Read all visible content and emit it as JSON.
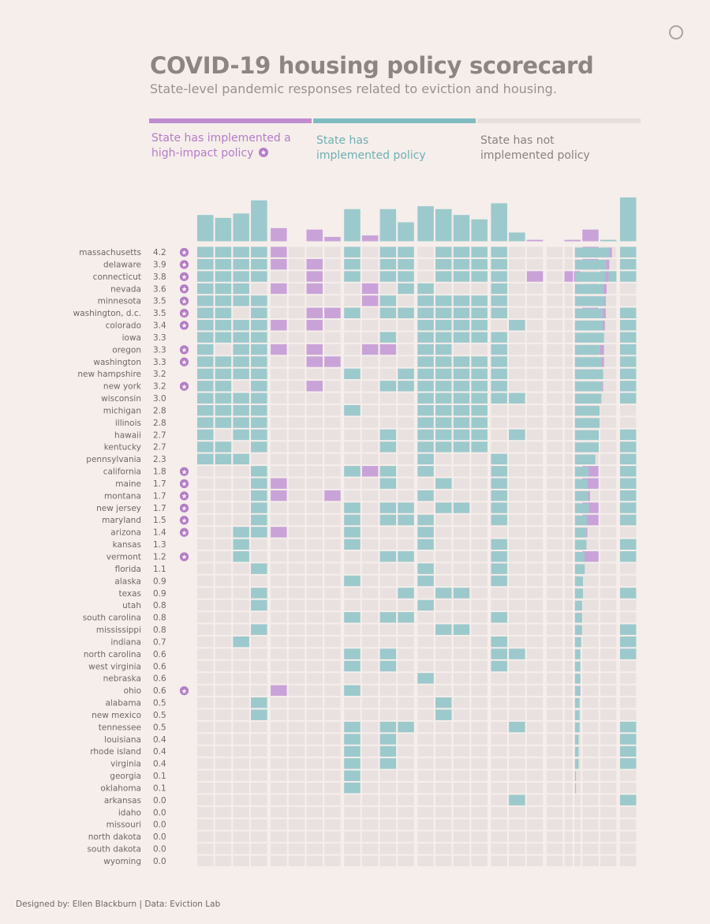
{
  "title": "COVID-19 housing policy scorecard",
  "subtitle": "State-level pandemic responses related to eviction and housing.",
  "legend": {
    "high_impact": "State has implemented a high-impact policy",
    "implemented": "State has implemented policy",
    "not_implemented": "State has not implemented policy"
  },
  "footer": "Designed by: Ellen Blackburn | Data: Eviction Lab",
  "colors": {
    "high_impact": "#c9a3d8",
    "implemented": "#9cc9cc",
    "not_implemented": "#e9e1df",
    "star": "#b57cc6"
  },
  "chart_data": {
    "type": "heatmap",
    "title": "COVID-19 housing policy scorecard",
    "legend": [
      "State has implemented a high-impact policy",
      "State has implemented policy",
      "State has not implemented policy"
    ],
    "states": [
      "massachusetts",
      "delaware",
      "connecticut",
      "nevada",
      "minnesota",
      "washington, d.c.",
      "colorado",
      "iowa",
      "oregon",
      "washington",
      "new hampshire",
      "new york",
      "wisconsin",
      "michigan",
      "illinois",
      "hawaii",
      "kentucky",
      "pennsylvania",
      "california",
      "maine",
      "montana",
      "new jersey",
      "maryland",
      "arizona",
      "kansas",
      "vermont",
      "florida",
      "alaska",
      "texas",
      "utah",
      "south carolina",
      "mississippi",
      "indiana",
      "north carolina",
      "west virginia",
      "nebraska",
      "ohio",
      "alabama",
      "new mexico",
      "tennessee",
      "louisiana",
      "rhode island",
      "virginia",
      "georgia",
      "oklahoma",
      "arkansas",
      "idaho",
      "missouri",
      "north dakota",
      "south dakota",
      "wyoming"
    ],
    "scores": [
      "4.2",
      "3.9",
      "3.8",
      "3.6",
      "3.5",
      "3.5",
      "3.4",
      "3.3",
      "3.3",
      "3.3",
      "3.2",
      "3.2",
      "3.0",
      "2.8",
      "2.8",
      "2.7",
      "2.7",
      "2.3",
      "1.8",
      "1.7",
      "1.7",
      "1.7",
      "1.5",
      "1.4",
      "1.3",
      "1.2",
      "1.1",
      "0.9",
      "0.9",
      "0.8",
      "0.8",
      "0.8",
      "0.7",
      "0.6",
      "0.6",
      "0.6",
      "0.6",
      "0.5",
      "0.5",
      "0.5",
      "0.4",
      "0.4",
      "0.4",
      "0.1",
      "0.1",
      "0.0",
      "0.0",
      "0.0",
      "0.0",
      "0.0",
      "0.0"
    ],
    "high_impact_flag": [
      1,
      1,
      1,
      1,
      1,
      1,
      1,
      0,
      1,
      1,
      0,
      1,
      0,
      0,
      0,
      0,
      0,
      0,
      1,
      1,
      1,
      1,
      1,
      1,
      0,
      1,
      0,
      0,
      0,
      0,
      0,
      0,
      0,
      0,
      0,
      0,
      1,
      0,
      0,
      0,
      0,
      0,
      0,
      0,
      0,
      0,
      0,
      0,
      0,
      0,
      0
    ],
    "column_groups": [
      4,
      4,
      4,
      4,
      3,
      4,
      1
    ],
    "cell_codes": "0 = not implemented, 1 = implemented, 2 = high-impact",
    "matrix": [
      "1111 2000 1011 0111 100 0020 1",
      "1111 2020 1011 0111 100 0020 1",
      "1111 0020 1011 0111 102 0201 1",
      "1110 2020 0201 1000 100 0000 0",
      "1111 0000 0210 1111 100 0000 0",
      "1101 0022 1011 1111 100 0020 1",
      "1111 2020 0000 1111 010 0000 1",
      "1111 0000 0010 1111 100 0000 1",
      "1011 2020 0220 1100 100 0000 1",
      "1111 0022 0000 1111 100 0000 1",
      "1111 0000 1001 1111 100 0000 1",
      "1101 0020 0011 1111 100 0000 1",
      "1111 0000 0000 1111 110 0000 1",
      "1111 0000 1000 1111 000 0000 0",
      "1111 0000 0000 1111 000 0000 0",
      "1011 0000 0010 1111 010 0000 1",
      "1101 0000 0010 1111 000 0000 1",
      "1110 0000 0000 1000 100 0000 1",
      "0001 0000 1210 1000 100 0020 1",
      "0001 2000 0010 0100 100 0020 1",
      "0001 2002 0000 1000 100 0000 1",
      "0001 0000 1011 0110 100 0020 1",
      "0001 0000 1011 1000 100 0020 1",
      "0011 2000 1000 1000 000 0000 0",
      "0010 0000 1000 1000 100 0000 1",
      "0010 0000 0011 0000 100 0020 1",
      "0001 0000 0000 1000 100 0000 0",
      "0000 0000 1000 1000 100 0000 0",
      "0001 0000 0001 0110 000 0000 1",
      "0001 0000 0000 1000 000 0000 0",
      "0000 0000 1011 0000 100 0000 0",
      "0001 0000 0000 0110 000 0000 1",
      "0010 0000 0000 0000 100 0000 1",
      "0000 0000 1010 0000 110 0000 1",
      "0000 0000 1010 0000 100 0000 0",
      "0000 0000 0000 1000 000 0000 0",
      "0000 2000 1000 0000 000 0000 0",
      "0001 0000 0000 0100 000 0000 0",
      "0001 0000 0000 0100 000 0000 0",
      "0000 0000 1011 0000 010 0000 1",
      "0000 0000 1010 0000 000 0000 1",
      "0000 0000 1010 0000 000 0000 1",
      "0000 0000 1010 0000 000 0000 1",
      "0000 0000 1000 0000 000 0000 0",
      "0000 0000 1000 0000 000 0000 0",
      "0000 0000 0000 0000 010 0000 1",
      "0000 0000 0000 0000 000 0000 0",
      "0000 0000 0000 0000 000 0000 0",
      "0000 0000 0000 0000 000 0000 0",
      "0000 0000 0000 0000 000 0000 0",
      "0000 0000 0000 0000 000 0000 0"
    ]
  }
}
